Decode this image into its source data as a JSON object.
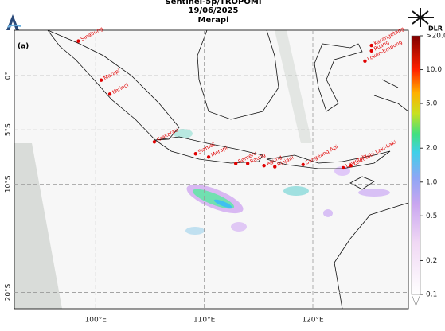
{
  "header": {
    "title_lines": [
      "Sentinel-5p/TROPOMI",
      "19/06/2025",
      "Merapi"
    ],
    "panel": "(a)",
    "logo": "DLR"
  },
  "map": {
    "xlim": [
      92.5,
      128.8
    ],
    "ylim": [
      -21.5,
      4.2
    ],
    "xticks": [
      {
        "value": 100,
        "label": "100°E"
      },
      {
        "value": 110,
        "label": "110°E"
      },
      {
        "value": 120,
        "label": "120°E"
      }
    ],
    "yticks": [
      {
        "value": 0,
        "label": "0°"
      },
      {
        "value": -5,
        "label": "5°S"
      },
      {
        "value": -10,
        "label": "10°S"
      },
      {
        "value": -20,
        "label": "20°S"
      }
    ],
    "grid": true,
    "volcanoes": [
      {
        "name": "Sinabung",
        "lon": 98.4,
        "lat": 3.2
      },
      {
        "name": "Marapi",
        "lon": 100.5,
        "lat": -0.4
      },
      {
        "name": "Kerinci",
        "lon": 101.3,
        "lat": -1.7
      },
      {
        "name": "Krakatau",
        "lon": 105.4,
        "lat": -6.1
      },
      {
        "name": "Slamet",
        "lon": 109.2,
        "lat": -7.2
      },
      {
        "name": "Merapi",
        "lon": 110.4,
        "lat": -7.5
      },
      {
        "name": "Semeru",
        "lon": 112.9,
        "lat": -8.1
      },
      {
        "name": "Raung",
        "lon": 114.0,
        "lat": -8.1
      },
      {
        "name": "Agung",
        "lon": 115.5,
        "lat": -8.3
      },
      {
        "name": "Rinjani",
        "lon": 116.5,
        "lat": -8.4
      },
      {
        "name": "Sangeang Api",
        "lon": 119.1,
        "lat": -8.2
      },
      {
        "name": "Lewotobi",
        "lon": 122.8,
        "lat": -8.5
      },
      {
        "name": "Lewotobi Laki-Laki",
        "lon": 123.5,
        "lat": -8.3
      },
      {
        "name": "Karangetang",
        "lon": 125.4,
        "lat": 2.8
      },
      {
        "name": "Ruang",
        "lon": 125.4,
        "lat": 2.3
      },
      {
        "name": "Lokon-Empung",
        "lon": 124.8,
        "lat": 1.35
      }
    ]
  },
  "colorbar": {
    "log": true,
    "lim": [
      0.1,
      20
    ],
    "ticks": [
      {
        "value": 20,
        "label": ">20.0"
      },
      {
        "value": 10,
        "label": "10.0"
      },
      {
        "value": 5,
        "label": "5.0"
      },
      {
        "value": 2,
        "label": "2.0"
      },
      {
        "value": 1,
        "label": "1.0"
      },
      0.5,
      0.2,
      0.1
    ]
  }
}
